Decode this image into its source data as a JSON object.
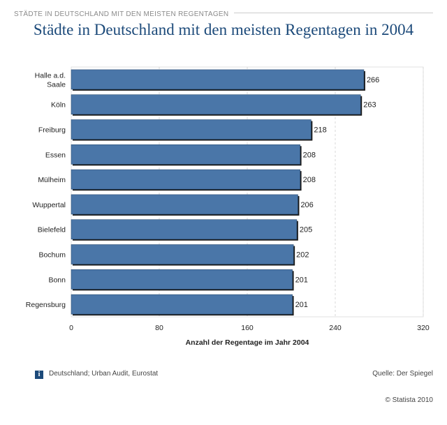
{
  "header": {
    "section_label": "STÄDTE IN DEUTSCHLAND MIT DEN MEISTEN REGENTAGEN",
    "title": "Städte in Deutschland mit den meisten Regentagen in 2004"
  },
  "footer": {
    "info_icon": "info-icon",
    "info_glyph": "i",
    "source_note": "Deutschland; Urban Audit, Eurostat",
    "quelle": "Quelle: Der Spiegel",
    "copyright": "© Statista 2010"
  },
  "colors": {
    "bar": "#4a76a8",
    "bar_border": "#2a4d73",
    "shadow": "#1a1a1a",
    "grid": "#d8d8d8",
    "title": "#1c4a7a"
  },
  "chart_data": {
    "type": "bar",
    "orientation": "horizontal",
    "categories": [
      [
        "Halle a.d.",
        "Saale"
      ],
      [
        "Köln"
      ],
      [
        "Freiburg"
      ],
      [
        "Essen"
      ],
      [
        "Mülheim"
      ],
      [
        "Wuppertal"
      ],
      [
        "Bielefeld"
      ],
      [
        "Bochum"
      ],
      [
        "Bonn"
      ],
      [
        "Regensburg"
      ]
    ],
    "values": [
      266,
      263,
      218,
      208,
      208,
      206,
      205,
      202,
      201,
      201
    ],
    "data_labels": [
      "266",
      "263",
      "218",
      "208",
      "208",
      "206",
      "205",
      "202",
      "201",
      "201"
    ],
    "xlabel": "Anzahl der Regentage im Jahr 2004",
    "xlim": [
      0,
      320
    ],
    "xticks": [
      0,
      80,
      160,
      240,
      320
    ],
    "grid": true,
    "legend": "none"
  }
}
